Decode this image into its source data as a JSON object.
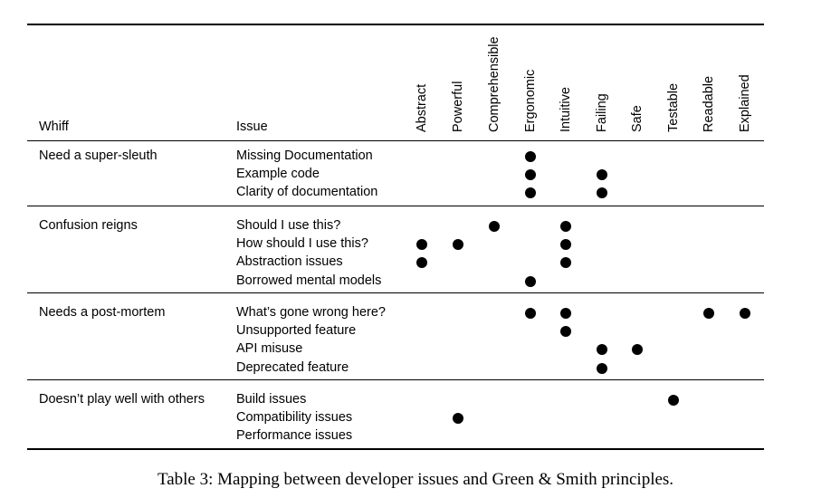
{
  "table": {
    "header_whiff": "Whiff",
    "header_issue": "Issue",
    "principles": [
      "Abstract",
      "Powerful",
      "Comprehensible",
      "Ergonomic",
      "Intuitive",
      "Failing",
      "Safe",
      "Testable",
      "Readable",
      "Explained"
    ],
    "groups": [
      {
        "whiff": "Need a super-sleuth",
        "rows": [
          {
            "issue": "Missing Documentation",
            "marks": [
              "Ergonomic"
            ]
          },
          {
            "issue": "Example code",
            "marks": [
              "Ergonomic",
              "Failing"
            ]
          },
          {
            "issue": "Clarity of documentation",
            "marks": [
              "Ergonomic",
              "Failing"
            ]
          }
        ]
      },
      {
        "whiff": "Confusion reigns",
        "rows": [
          {
            "issue": "Should I use this?",
            "marks": [
              "Comprehensible",
              "Intuitive"
            ]
          },
          {
            "issue": "How should I use this?",
            "marks": [
              "Abstract",
              "Powerful",
              "Intuitive"
            ]
          },
          {
            "issue": "Abstraction issues",
            "marks": [
              "Abstract",
              "Intuitive"
            ]
          },
          {
            "issue": "Borrowed mental models",
            "marks": [
              "Ergonomic"
            ]
          }
        ]
      },
      {
        "whiff": "Needs a post-mortem",
        "rows": [
          {
            "issue": "What’s gone wrong here?",
            "marks": [
              "Ergonomic",
              "Intuitive",
              "Readable",
              "Explained"
            ]
          },
          {
            "issue": "Unsupported feature",
            "marks": [
              "Intuitive"
            ]
          },
          {
            "issue": "API misuse",
            "marks": [
              "Failing",
              "Safe"
            ]
          },
          {
            "issue": "Deprecated feature",
            "marks": [
              "Failing"
            ]
          }
        ]
      },
      {
        "whiff": "Doesn’t play well with others",
        "rows": [
          {
            "issue": "Build issues",
            "marks": [
              "Testable"
            ]
          },
          {
            "issue": "Compatibility issues",
            "marks": [
              "Powerful"
            ]
          },
          {
            "issue": "Performance issues",
            "marks": []
          }
        ]
      }
    ]
  },
  "caption": "Table 3: Mapping between developer issues and Green & Smith principles."
}
